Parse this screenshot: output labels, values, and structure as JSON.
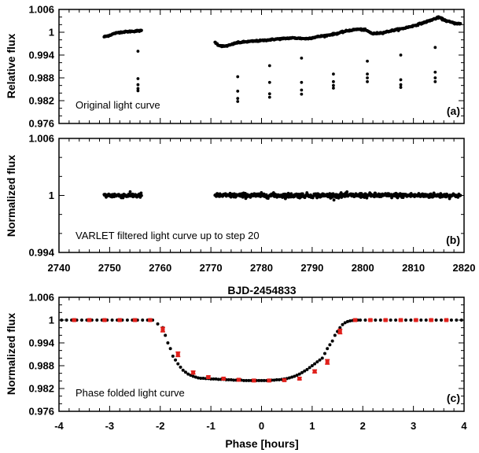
{
  "chart_data": [
    {
      "panel": "a",
      "type": "scatter",
      "ylabel": "Relative flux",
      "xlim": [
        2740,
        2820
      ],
      "ylim": [
        0.976,
        1.006
      ],
      "xticks": [
        2740,
        2750,
        2760,
        2770,
        2780,
        2790,
        2800,
        2810,
        2820
      ],
      "yticks": [
        "1.006",
        "1",
        "0.994",
        "0.988",
        "0.982",
        "0.976"
      ],
      "annotation": "Original light curve",
      "tag": "(a)",
      "segments": [
        {
          "x": [
            2748.9,
            2749.5,
            2750.2,
            2751.0,
            2752.0,
            2753.0,
            2754.0,
            2755.0,
            2756.3
          ],
          "y": [
            0.9988,
            0.999,
            0.9993,
            0.9997,
            1.0,
            1.0001,
            1.0002,
            1.0003,
            1.0004
          ]
        },
        {
          "x": [
            2770.8,
            2771.5,
            2772.5,
            2773.5,
            2775,
            2777,
            2780,
            2783,
            2786,
            2789,
            2791,
            2793,
            2795,
            2797,
            2799,
            2800.5,
            2802,
            2804,
            2806,
            2808,
            2810,
            2812,
            2813.5,
            2815,
            2816.5,
            2818,
            2819.3
          ],
          "y": [
            0.9974,
            0.9966,
            0.9963,
            0.9965,
            0.9972,
            0.9975,
            0.9978,
            0.9982,
            0.9985,
            0.9983,
            0.9988,
            0.9992,
            0.9997,
            1.0004,
            1.0008,
            1.0006,
            0.9996,
            0.9999,
            1.0005,
            1.001,
            1.0017,
            1.0025,
            1.0032,
            1.0039,
            1.003,
            1.0024,
            1.0022
          ]
        }
      ],
      "outliers": {
        "x": [
          2755.6,
          2755.6,
          2755.6,
          2755.6,
          2755.6,
          2775.3,
          2775.3,
          2775.3,
          2775.3,
          2781.6,
          2781.6,
          2781.6,
          2781.6,
          2787.9,
          2787.9,
          2787.9,
          2787.9,
          2794.2,
          2794.2,
          2794.2,
          2794.2,
          2800.9,
          2800.9,
          2800.9,
          2800.9,
          2807.5,
          2807.5,
          2807.5,
          2807.5,
          2814.3,
          2814.3,
          2814.3,
          2814.3
        ],
        "y": [
          0.995,
          0.9878,
          0.9862,
          0.9852,
          0.9846,
          0.9883,
          0.9845,
          0.9826,
          0.9818,
          0.9912,
          0.9868,
          0.9838,
          0.9829,
          0.9932,
          0.9868,
          0.9848,
          0.9837,
          0.989,
          0.987,
          0.986,
          0.9853,
          0.9924,
          0.989,
          0.988,
          0.987,
          0.994,
          0.9875,
          0.9862,
          0.9855,
          0.996,
          0.9895,
          0.988,
          0.987
        ]
      },
      "point_color": "#000000"
    },
    {
      "panel": "b",
      "type": "scatter",
      "ylabel": "Normalized flux",
      "xlabel": "BJD-2454833",
      "xlim": [
        2740,
        2820
      ],
      "ylim": [
        0.994,
        1.006
      ],
      "xticks": [
        2740,
        2750,
        2760,
        2770,
        2780,
        2790,
        2800,
        2810,
        2820
      ],
      "yticks": [
        "1.006",
        "1",
        "0.994"
      ],
      "annotation": "VARLET filtered light curve up to step 20",
      "tag": "(b)",
      "segments": [
        {
          "x": [
            2748.9,
            2756.3
          ],
          "y": [
            1.0,
            1.0
          ]
        },
        {
          "x": [
            2770.8,
            2819.3
          ],
          "y": [
            1.0,
            1.0
          ]
        }
      ],
      "point_color": "#000000"
    },
    {
      "panel": "c",
      "type": "scatter",
      "ylabel": "Normalized flux",
      "xlabel": "Phase [hours]",
      "xlim": [
        -4,
        4
      ],
      "ylim": [
        0.976,
        1.006
      ],
      "xticks": [
        -4,
        -3,
        -2,
        -1,
        0,
        1,
        2,
        3,
        4
      ],
      "yticks": [
        "1.006",
        "1",
        "0.994",
        "0.988",
        "0.982",
        "0.976"
      ],
      "annotation": "Phase folded light curve",
      "tag": "(c)",
      "phased": {
        "x": [
          -3.95,
          -3.85,
          -3.75,
          -3.65,
          -3.55,
          -3.45,
          -3.35,
          -3.25,
          -3.15,
          -3.05,
          -2.95,
          -2.85,
          -2.75,
          -2.65,
          -2.55,
          -2.45,
          -2.35,
          -2.25,
          -2.15,
          -2.05,
          -1.95,
          -1.9,
          -1.85,
          -1.8,
          -1.75,
          -1.7,
          -1.65,
          -1.6,
          -1.55,
          -1.5,
          -1.45,
          -1.4,
          -1.35,
          -1.3,
          -1.25,
          -1.2,
          -1.15,
          -1.1,
          -1.05,
          -1.0,
          -0.95,
          -0.9,
          -0.85,
          -0.8,
          -0.75,
          -0.7,
          -0.65,
          -0.6,
          -0.55,
          -0.5,
          -0.45,
          -0.4,
          -0.35,
          -0.3,
          -0.25,
          -0.2,
          -0.15,
          -0.1,
          -0.05,
          0.0,
          0.05,
          0.1,
          0.15,
          0.2,
          0.25,
          0.3,
          0.35,
          0.4,
          0.45,
          0.5,
          0.55,
          0.6,
          0.65,
          0.7,
          0.75,
          0.8,
          0.85,
          0.9,
          0.95,
          1.0,
          1.05,
          1.1,
          1.15,
          1.2,
          1.25,
          1.3,
          1.35,
          1.4,
          1.45,
          1.5,
          1.55,
          1.6,
          1.65,
          1.7,
          1.75,
          1.8,
          1.85,
          1.9,
          1.95,
          2.05,
          2.15,
          2.25,
          2.35,
          2.45,
          2.55,
          2.65,
          2.75,
          2.85,
          2.95,
          3.05,
          3.15,
          3.25,
          3.35,
          3.45,
          3.55,
          3.65,
          3.75,
          3.85,
          3.95
        ],
        "y": [
          1.0,
          1.0,
          1.0,
          1.0,
          1.0,
          1.0,
          1.0,
          1.0,
          1.0,
          1.0,
          1.0,
          1.0,
          1.0,
          1.0,
          1.0,
          1.0,
          1.0,
          1.0,
          1.0,
          0.999,
          0.998,
          0.996,
          0.994,
          0.9925,
          0.9905,
          0.9895,
          0.9885,
          0.9876,
          0.9868,
          0.9863,
          0.9858,
          0.9855,
          0.9852,
          0.985,
          0.9848,
          0.9847,
          0.9847,
          0.9846,
          0.9846,
          0.9845,
          0.9845,
          0.9845,
          0.9844,
          0.9844,
          0.9844,
          0.9843,
          0.9843,
          0.9843,
          0.9842,
          0.9842,
          0.9842,
          0.9842,
          0.9841,
          0.9841,
          0.9841,
          0.9841,
          0.9841,
          0.9841,
          0.9841,
          0.9841,
          0.9841,
          0.9841,
          0.9842,
          0.9842,
          0.9842,
          0.9843,
          0.9843,
          0.9844,
          0.9845,
          0.9846,
          0.9848,
          0.985,
          0.9852,
          0.9855,
          0.9858,
          0.9862,
          0.9866,
          0.987,
          0.9875,
          0.988,
          0.9885,
          0.989,
          0.9895,
          0.99,
          0.9912,
          0.9925,
          0.9935,
          0.9945,
          0.996,
          0.997,
          0.998,
          0.9988,
          0.9993,
          0.9996,
          0.9998,
          0.9999,
          1.0,
          1.0,
          1.0,
          1.0,
          1.0,
          1.0,
          1.0,
          1.0,
          1.0,
          1.0,
          1.0,
          1.0,
          1.0,
          1.0,
          1.0,
          1.0,
          1.0,
          1.0,
          1.0,
          1.0,
          1.0,
          1.0,
          1.0
        ]
      },
      "binned": {
        "x": [
          -3.7,
          -3.4,
          -3.1,
          -2.8,
          -2.5,
          -2.2,
          -1.95,
          -1.65,
          -1.35,
          -1.05,
          -0.75,
          -0.45,
          -0.15,
          0.15,
          0.45,
          0.75,
          1.05,
          1.3,
          1.55,
          1.85,
          2.15,
          2.45,
          2.75,
          3.05,
          3.35,
          3.65
        ],
        "y": [
          1.0,
          1.0,
          1.0,
          1.0,
          1.0,
          1.0,
          0.9975,
          0.991,
          0.9862,
          0.985,
          0.9846,
          0.9843,
          0.9841,
          0.9841,
          0.9842,
          0.9846,
          0.9865,
          0.989,
          0.997,
          1.0,
          1.0,
          1.0,
          1.0,
          1.0,
          1.0,
          1.0
        ],
        "err": [
          0.0002,
          0.0002,
          0.0002,
          0.0002,
          0.0002,
          0.0002,
          0.0006,
          0.0006,
          0.0004,
          0.0003,
          0.0003,
          0.0003,
          0.0003,
          0.0003,
          0.0003,
          0.0003,
          0.0004,
          0.0006,
          0.0006,
          0.0002,
          0.0002,
          0.0002,
          0.0002,
          0.0002,
          0.0002,
          0.0002
        ]
      },
      "point_color": "#000000",
      "binned_color": "#e0201b"
    }
  ]
}
